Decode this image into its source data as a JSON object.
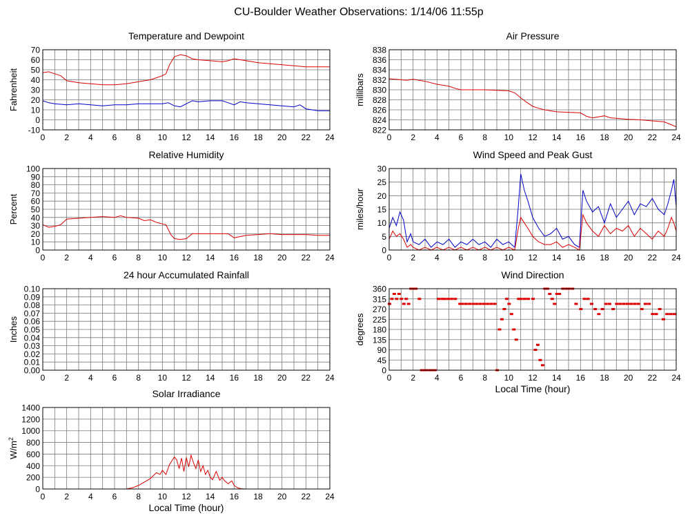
{
  "page": {
    "title": "CU-Boulder Weather Observations: 1/14/06 11:55p"
  },
  "colors": {
    "red": "#dd0000",
    "blue": "#0000cc",
    "grid": "#777777",
    "background": "#ffffff"
  },
  "chart_data": [
    {
      "id": "temp",
      "type": "line",
      "title": "Temperature and Dewpoint",
      "ylabel": "Fahrenheit",
      "xlabel": "",
      "xlim": [
        0,
        24
      ],
      "ylim": [
        -10,
        70
      ],
      "xticks": [
        0,
        2,
        4,
        6,
        8,
        10,
        12,
        14,
        16,
        18,
        20,
        22,
        24
      ],
      "yticks": [
        -10,
        0,
        10,
        20,
        30,
        40,
        50,
        60,
        70
      ],
      "ytick_labels": [
        "-10",
        "0",
        "10",
        "20",
        "30",
        "40",
        "50",
        "60",
        "70"
      ],
      "series": [
        {
          "name": "Temperature",
          "color": "#dd0000",
          "x": [
            0,
            0.5,
            1,
            1.5,
            2,
            3,
            4,
            5,
            6,
            7,
            8,
            8.5,
            9,
            9.5,
            10,
            10.3,
            10.6,
            11,
            11.5,
            12,
            12.5,
            13,
            14,
            15,
            15.5,
            16,
            16.5,
            17,
            18,
            19,
            20,
            21,
            22,
            23,
            24
          ],
          "values": [
            47,
            48,
            46,
            44,
            39,
            37,
            36,
            35,
            35,
            36,
            38,
            39,
            40,
            42,
            44,
            46,
            55,
            63,
            65,
            64,
            61,
            60,
            59,
            58,
            59,
            61,
            60,
            59,
            57,
            56,
            55,
            54,
            53,
            53,
            53
          ]
        },
        {
          "name": "Dewpoint",
          "color": "#0000cc",
          "x": [
            0,
            0.5,
            1,
            2,
            3,
            4,
            5,
            6,
            7,
            8,
            9,
            10,
            10.5,
            11,
            11.5,
            12,
            12.5,
            13,
            14,
            15,
            15.5,
            16,
            16.5,
            17,
            18,
            19,
            20,
            21,
            21.5,
            22,
            23,
            24
          ],
          "values": [
            19,
            17,
            16,
            15,
            16,
            15,
            14,
            15,
            15,
            16,
            16,
            16,
            17,
            14,
            13,
            16,
            19,
            18,
            19,
            19,
            17,
            15,
            18,
            17,
            16,
            15,
            14,
            13,
            15,
            11,
            9,
            9
          ]
        }
      ]
    },
    {
      "id": "pressure",
      "type": "line",
      "title": "Air Pressure",
      "ylabel": "millibars",
      "xlabel": "",
      "xlim": [
        0,
        24
      ],
      "ylim": [
        822,
        838
      ],
      "xticks": [
        0,
        2,
        4,
        6,
        8,
        10,
        12,
        14,
        16,
        18,
        20,
        22,
        24
      ],
      "yticks": [
        822,
        824,
        826,
        828,
        830,
        832,
        834,
        836,
        838
      ],
      "ytick_labels": [
        "822",
        "824",
        "826",
        "828",
        "830",
        "832",
        "834",
        "836",
        "838"
      ],
      "series": [
        {
          "name": "Pressure",
          "color": "#dd0000",
          "x": [
            0,
            1,
            1.5,
            2,
            3,
            4,
            5,
            5.5,
            6,
            8,
            9,
            10,
            10.5,
            11,
            11.5,
            12,
            12.5,
            13,
            14,
            15,
            16,
            16.5,
            17,
            18,
            18.5,
            19,
            20,
            21,
            22,
            23,
            23.5,
            24
          ],
          "values": [
            832.2,
            832,
            831.9,
            832.1,
            831.7,
            831.1,
            830.7,
            830.3,
            830,
            830,
            829.9,
            829.8,
            829.4,
            828.4,
            827.5,
            826.7,
            826.3,
            826,
            825.6,
            825.5,
            825.4,
            824.7,
            824.4,
            824.8,
            824.4,
            824.3,
            824.1,
            824,
            823.8,
            823.6,
            823.1,
            822.6
          ]
        }
      ]
    },
    {
      "id": "humidity",
      "type": "line",
      "title": "Relative Humidity",
      "ylabel": "Percent",
      "xlabel": "",
      "xlim": [
        0,
        24
      ],
      "ylim": [
        0,
        100
      ],
      "xticks": [
        0,
        2,
        4,
        6,
        8,
        10,
        12,
        14,
        16,
        18,
        20,
        22,
        24
      ],
      "yticks": [
        0,
        10,
        20,
        30,
        40,
        50,
        60,
        70,
        80,
        90,
        100
      ],
      "ytick_labels": [
        "0",
        "10",
        "20",
        "30",
        "40",
        "50",
        "60",
        "70",
        "80",
        "90",
        "100"
      ],
      "series": [
        {
          "name": "Relative Humidity",
          "color": "#dd0000",
          "x": [
            0,
            0.5,
            1,
            1.5,
            2,
            3,
            4,
            5,
            6,
            6.5,
            7,
            8,
            8.5,
            9,
            9.5,
            10,
            10.3,
            10.7,
            11,
            11.5,
            12,
            12.5,
            13,
            14,
            15,
            15.5,
            16,
            17,
            18,
            19,
            20,
            21,
            22,
            23,
            24
          ],
          "values": [
            31,
            28,
            29,
            31,
            38,
            39,
            40,
            41,
            40,
            42,
            40,
            39,
            36,
            37,
            34,
            32,
            31,
            19,
            14,
            13,
            14,
            20,
            20,
            20,
            20,
            20,
            15,
            18,
            19,
            20,
            19,
            19,
            19,
            18,
            18
          ]
        }
      ]
    },
    {
      "id": "wind",
      "type": "line",
      "title": "Wind Speed and Peak Gust",
      "ylabel": "miles/hour",
      "xlabel": "",
      "xlim": [
        0,
        24
      ],
      "ylim": [
        0,
        30
      ],
      "xticks": [
        0,
        2,
        4,
        6,
        8,
        10,
        12,
        14,
        16,
        18,
        20,
        22,
        24
      ],
      "yticks": [
        0,
        5,
        10,
        15,
        20,
        25,
        30
      ],
      "ytick_labels": [
        "0",
        "5",
        "10",
        "15",
        "20",
        "25",
        "30"
      ],
      "series": [
        {
          "name": "Peak Gust",
          "color": "#0000cc",
          "x": [
            0,
            0.3,
            0.6,
            0.9,
            1.2,
            1.5,
            1.8,
            2,
            2.5,
            3,
            3.5,
            4,
            4.5,
            5,
            5.5,
            6,
            6.5,
            7,
            7.5,
            8,
            8.5,
            9,
            9.5,
            10,
            10.5,
            10.8,
            11,
            11.3,
            11.6,
            12,
            12.5,
            13,
            13.5,
            14,
            14.5,
            15,
            15.5,
            15.9,
            16.2,
            16.5,
            17,
            17.5,
            18,
            18.5,
            19,
            19.5,
            20,
            20.5,
            21,
            21.5,
            22,
            22.5,
            23,
            23.3,
            23.6,
            23.8,
            24
          ],
          "values": [
            8,
            12,
            9,
            14,
            11,
            3,
            6,
            3,
            2,
            4,
            1,
            3,
            2,
            4,
            1,
            3,
            2,
            4,
            2,
            3,
            1,
            4,
            2,
            3,
            1,
            16,
            28,
            22,
            18,
            12,
            8,
            5,
            6,
            8,
            4,
            5,
            2,
            1,
            22,
            18,
            14,
            16,
            10,
            17,
            12,
            15,
            18,
            13,
            17,
            16,
            19,
            15,
            13,
            17,
            22,
            26,
            16
          ]
        },
        {
          "name": "Wind Speed",
          "color": "#dd0000",
          "x": [
            0,
            0.3,
            0.6,
            0.9,
            1.2,
            1.5,
            1.8,
            2,
            2.5,
            3,
            3.5,
            4,
            4.5,
            5,
            5.5,
            6,
            6.5,
            7,
            7.5,
            8,
            8.5,
            9,
            9.5,
            10,
            10.5,
            10.8,
            11,
            11.3,
            11.6,
            12,
            12.5,
            13,
            13.5,
            14,
            14.5,
            15,
            15.5,
            15.9,
            16.2,
            16.5,
            17,
            17.5,
            18,
            18.5,
            19,
            19.5,
            20,
            20.5,
            21,
            21.5,
            22,
            22.5,
            23,
            23.3,
            23.6,
            23.8,
            24
          ],
          "values": [
            4,
            7,
            5,
            6,
            4,
            1,
            2,
            1,
            0,
            1,
            0,
            1,
            0,
            1,
            0,
            1,
            0,
            1,
            0,
            1,
            0,
            1,
            0,
            1,
            0,
            8,
            12,
            10,
            8,
            5,
            3,
            2,
            2,
            3,
            1,
            2,
            1,
            0,
            13,
            10,
            7,
            5,
            9,
            6,
            8,
            7,
            9,
            5,
            8,
            6,
            4,
            7,
            5,
            8,
            12,
            10,
            7
          ]
        }
      ]
    },
    {
      "id": "rain",
      "type": "line",
      "title": "24 hour Accumulated Rainfall",
      "ylabel": "Inches",
      "xlabel": "",
      "xlim": [
        0,
        24
      ],
      "ylim": [
        0,
        0.1
      ],
      "xticks": [
        0,
        2,
        4,
        6,
        8,
        10,
        12,
        14,
        16,
        18,
        20,
        22,
        24
      ],
      "yticks": [
        0,
        0.01,
        0.02,
        0.03,
        0.04,
        0.05,
        0.06,
        0.07,
        0.08,
        0.09,
        0.1
      ],
      "ytick_labels": [
        "0.00",
        "0.01",
        "0.02",
        "0.03",
        "0.04",
        "0.05",
        "0.06",
        "0.07",
        "0.08",
        "0.09",
        "0.10"
      ],
      "series": [
        {
          "name": "Rainfall",
          "color": "#dd0000",
          "x": [
            0,
            24
          ],
          "values": [
            0,
            0
          ]
        }
      ]
    },
    {
      "id": "direction",
      "type": "scatter",
      "title": "Wind Direction",
      "ylabel": "degrees",
      "xlabel": "Local Time (hour)",
      "xlim": [
        0,
        24
      ],
      "ylim": [
        0,
        360
      ],
      "xticks": [
        0,
        2,
        4,
        6,
        8,
        10,
        12,
        14,
        16,
        18,
        20,
        22,
        24
      ],
      "yticks": [
        0,
        45,
        90,
        135,
        180,
        225,
        270,
        315,
        360
      ],
      "ytick_labels": [
        "0",
        "45",
        "90",
        "135",
        "180",
        "225",
        "270",
        "315",
        "360"
      ],
      "series": [
        {
          "name": "Wind Direction",
          "color": "#dd0000",
          "x": [
            0,
            0.2,
            0.4,
            0.6,
            0.8,
            1,
            1.2,
            1.4,
            1.6,
            1.8,
            2,
            2.2,
            2.5,
            2.7,
            2.9,
            3.1,
            3.4,
            3.6,
            3.8,
            4.1,
            4.4,
            4.6,
            4.9,
            5.2,
            5.5,
            5.9,
            6.1,
            6.4,
            6.7,
            7,
            7.3,
            7.6,
            7.9,
            8.2,
            8.5,
            8.8,
            9,
            9.2,
            9.4,
            9.6,
            9.8,
            10,
            10.2,
            10.4,
            10.6,
            10.8,
            11,
            11.3,
            11.6,
            12,
            12.2,
            12.4,
            12.6,
            12.8,
            13,
            13.2,
            13.4,
            13.6,
            13.8,
            14,
            14.2,
            14.5,
            14.8,
            15,
            15.3,
            15.6,
            16,
            16.3,
            16.6,
            16.9,
            17.2,
            17.5,
            17.8,
            18.1,
            18.4,
            18.7,
            19,
            19.3,
            19.6,
            19.9,
            20.2,
            20.5,
            20.8,
            21.1,
            21.4,
            21.7,
            22,
            22.3,
            22.6,
            22.9,
            23.2,
            23.5,
            23.8
          ],
          "values": [
            293,
            315,
            337,
            315,
            337,
            315,
            293,
            315,
            293,
            360,
            360,
            360,
            315,
            0,
            0,
            0,
            0,
            0,
            0,
            315,
            315,
            315,
            315,
            315,
            315,
            293,
            293,
            293,
            293,
            293,
            293,
            293,
            293,
            293,
            293,
            293,
            0,
            180,
            225,
            270,
            315,
            293,
            248,
            180,
            135,
            315,
            315,
            315,
            315,
            315,
            90,
            112,
            45,
            22,
            360,
            360,
            337,
            315,
            293,
            337,
            337,
            360,
            360,
            360,
            360,
            293,
            270,
            315,
            315,
            293,
            270,
            248,
            270,
            293,
            293,
            270,
            293,
            293,
            293,
            293,
            293,
            293,
            293,
            270,
            293,
            293,
            248,
            248,
            270,
            225,
            248,
            248,
            248
          ]
        }
      ]
    },
    {
      "id": "solar",
      "type": "line",
      "title": "Solar Irradiance",
      "ylabel": "W/m",
      "ylabel_sup": "2",
      "xlabel": "Local Time (hour)",
      "xlim": [
        0,
        24
      ],
      "ylim": [
        0,
        1400
      ],
      "xticks": [
        0,
        2,
        4,
        6,
        8,
        10,
        12,
        14,
        16,
        18,
        20,
        22,
        24
      ],
      "yticks": [
        0,
        200,
        400,
        600,
        800,
        1000,
        1200,
        1400
      ],
      "ytick_labels": [
        "0",
        "200",
        "400",
        "600",
        "800",
        "1000",
        "1200",
        "1400"
      ],
      "series": [
        {
          "name": "Solar Irradiance",
          "color": "#dd0000",
          "x": [
            0,
            7,
            7.5,
            8,
            8.5,
            9,
            9.5,
            9.8,
            10,
            10.3,
            10.6,
            11,
            11.2,
            11.4,
            11.6,
            11.8,
            12,
            12.2,
            12.4,
            12.6,
            12.8,
            13,
            13.2,
            13.4,
            13.6,
            13.8,
            14,
            14.2,
            14.5,
            14.8,
            15,
            15.2,
            15.5,
            15.8,
            16,
            16.3,
            16.6,
            17,
            24
          ],
          "values": [
            0,
            0,
            20,
            60,
            120,
            180,
            280,
            250,
            320,
            250,
            420,
            550,
            500,
            350,
            530,
            300,
            540,
            380,
            580,
            450,
            350,
            500,
            300,
            400,
            250,
            320,
            200,
            160,
            300,
            150,
            200,
            140,
            90,
            140,
            60,
            20,
            5,
            0,
            0
          ]
        }
      ]
    }
  ]
}
